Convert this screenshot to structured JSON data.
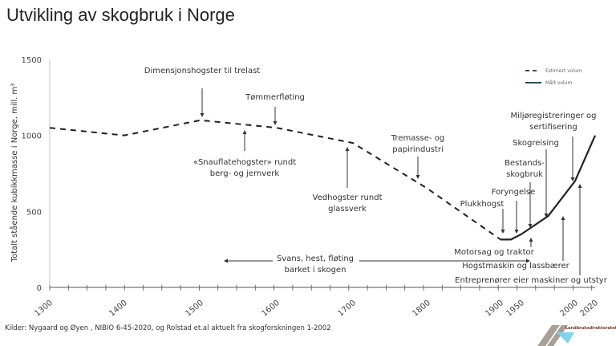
{
  "title": "Utvikling av skogbruk i Norge",
  "source": "Kilder: Nygaard og Øyen , NIBIO  6-45-2020, og Rolstad et.al aktuelt fra skogforskningen 1-2002",
  "logo_text": "Landbruksdirektoratet",
  "chart_data": {
    "type": "line",
    "title": "",
    "ylabel": "Totalt stående kubikkmasse i Norge, mill. m³",
    "xlabel": "",
    "ylim": [
      0,
      1500
    ],
    "yticks": [
      0,
      500,
      1000,
      1500
    ],
    "xticks": [
      1300,
      1400,
      1500,
      1600,
      1700,
      1800,
      1900,
      1950,
      2000,
      2020
    ],
    "legend_position": "top-right",
    "grid": false,
    "series": [
      {
        "name": "Estimert volum",
        "style": "dashed",
        "color": "#222222",
        "x": [
          1300,
          1400,
          1500,
          1600,
          1700,
          1800,
          1900
        ],
        "y": [
          1050,
          1000,
          1100,
          1050,
          950,
          650,
          315
        ]
      },
      {
        "name": "Målt volum",
        "style": "solid",
        "color": "#222222",
        "x": [
          1900,
          1925,
          1950,
          1975,
          2000,
          2020
        ],
        "y": [
          315,
          315,
          350,
          470,
          700,
          1000
        ]
      }
    ],
    "annotations": [
      {
        "lines": [
          "Dimensjonshogster til trelast"
        ],
        "arrow": "down"
      },
      {
        "lines": [
          "Tømmerfløting"
        ],
        "arrow": "down"
      },
      {
        "lines": [
          "«Snauflatehogster» rundt",
          "berg- og jernverk"
        ],
        "arrow": "up"
      },
      {
        "lines": [
          "Vedhogster rundt",
          "glassverk"
        ],
        "arrow": "up"
      },
      {
        "lines": [
          "Tremasse- og",
          "papirindustri"
        ],
        "arrow": "down"
      },
      {
        "lines": [
          "Plukkhogst"
        ],
        "arrow": "down"
      },
      {
        "lines": [
          "Foryngelse"
        ],
        "arrow": "down"
      },
      {
        "lines": [
          "Bestands-",
          "skogbruk"
        ],
        "arrow": "down"
      },
      {
        "lines": [
          "Skogreising"
        ],
        "arrow": "down"
      },
      {
        "lines": [
          "Miljøregistreringer og",
          "sertifisering"
        ],
        "arrow": "down"
      },
      {
        "lines": [
          "Svans, hest, fløting",
          "barket i skogen"
        ],
        "arrow": "both"
      },
      {
        "lines": [
          "Motorsag og traktor"
        ],
        "arrow": "up"
      },
      {
        "lines": [
          "Hogstmaskin og lassbærer"
        ],
        "arrow": "up"
      },
      {
        "lines": [
          "Entreprenører eier maskiner og utstyr"
        ],
        "arrow": "up"
      }
    ]
  }
}
